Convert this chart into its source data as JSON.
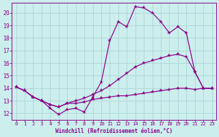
{
  "xlabel": "Windchill (Refroidissement éolien,°C)",
  "background_color": "#cceeed",
  "grid_color": "#aad4d3",
  "line_color": "#880088",
  "xlim_min": -0.5,
  "xlim_max": 23.5,
  "ylim_min": 11.5,
  "ylim_max": 20.8,
  "xticks": [
    0,
    1,
    2,
    3,
    4,
    5,
    6,
    7,
    8,
    9,
    10,
    11,
    12,
    13,
    14,
    15,
    16,
    17,
    18,
    19,
    20,
    21,
    22,
    23
  ],
  "yticks": [
    12,
    13,
    14,
    15,
    16,
    17,
    18,
    19,
    20
  ],
  "line1_x": [
    0,
    1,
    2,
    3,
    4,
    5,
    6,
    7,
    8,
    9,
    10,
    11,
    12,
    13,
    14,
    15,
    16,
    17,
    18,
    19,
    20,
    21,
    22,
    23
  ],
  "line1_y": [
    14.1,
    13.8,
    13.3,
    13.0,
    12.4,
    11.9,
    12.3,
    12.4,
    12.1,
    13.3,
    14.5,
    17.8,
    19.3,
    18.9,
    20.5,
    20.4,
    20.0,
    19.3,
    18.4,
    18.9,
    18.4,
    15.3,
    14.0,
    14.0
  ],
  "line2_x": [
    0,
    1,
    2,
    3,
    4,
    5,
    6,
    7,
    8,
    9,
    10,
    11,
    12,
    13,
    14,
    15,
    16,
    17,
    18,
    19,
    20,
    21,
    22,
    23
  ],
  "line2_y": [
    14.1,
    13.8,
    13.3,
    13.0,
    12.7,
    12.5,
    12.8,
    13.0,
    13.2,
    13.5,
    13.8,
    14.2,
    14.7,
    15.2,
    15.7,
    16.0,
    16.2,
    16.4,
    16.6,
    16.7,
    16.5,
    15.3,
    14.0,
    14.0
  ],
  "line3_x": [
    0,
    1,
    2,
    3,
    4,
    5,
    6,
    7,
    8,
    9,
    10,
    11,
    12,
    13,
    14,
    15,
    16,
    17,
    18,
    19,
    20,
    21,
    22,
    23
  ],
  "line3_y": [
    14.1,
    13.8,
    13.3,
    13.0,
    12.7,
    12.5,
    12.8,
    12.8,
    12.9,
    13.1,
    13.2,
    13.3,
    13.4,
    13.4,
    13.5,
    13.6,
    13.7,
    13.8,
    13.9,
    14.0,
    14.0,
    13.9,
    14.0,
    14.0
  ]
}
